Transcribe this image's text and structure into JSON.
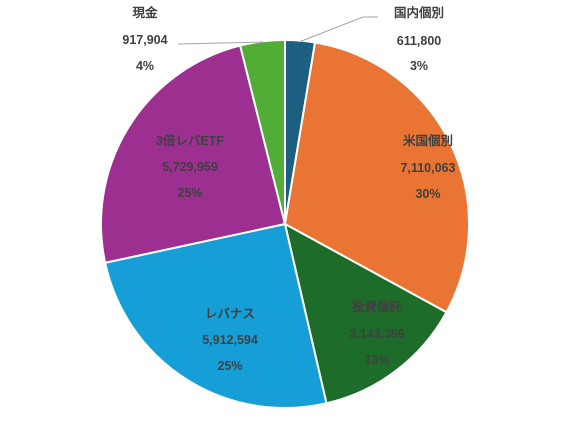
{
  "chart_data": {
    "type": "pie",
    "title": "",
    "legend": "none",
    "slices": [
      {
        "label": "国内個別",
        "value": 611800,
        "value_text": "611,800",
        "percent_text": "3%",
        "color": "#1d5f80"
      },
      {
        "label": "米国個別",
        "value": 7110063,
        "value_text": "7,110,063",
        "percent_text": "30%",
        "color": "#ea7433"
      },
      {
        "label": "投資信託",
        "value": 3143366,
        "value_text": "3,143,366",
        "percent_text": "13%",
        "color": "#1e6c2a"
      },
      {
        "label": "レバナス",
        "value": 5912594,
        "value_text": "5,912,594",
        "percent_text": "25%",
        "color": "#169fd7"
      },
      {
        "label": "3倍レバETF",
        "value": 5729959,
        "value_text": "5,729,959",
        "percent_text": "25%",
        "color": "#9c2f8f"
      },
      {
        "label": "現金",
        "value": 917904,
        "value_text": "917,904",
        "percent_text": "4%",
        "color": "#52ad36"
      }
    ]
  }
}
